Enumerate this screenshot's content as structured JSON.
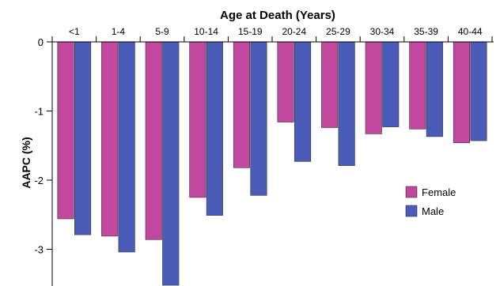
{
  "chart_data": {
    "type": "bar",
    "title": "Age at Death (Years)",
    "xlabel": "",
    "ylabel": "AAPC (%)",
    "categories": [
      "<1",
      "1-4",
      "5-9",
      "10-14",
      "15-19",
      "20-24",
      "25-29",
      "30-34",
      "35-39",
      "40-44"
    ],
    "series": [
      {
        "name": "Female",
        "color": "#c2479f",
        "values": [
          -2.56,
          -2.81,
          -2.86,
          -2.25,
          -1.82,
          -1.16,
          -1.24,
          -1.33,
          -1.26,
          -1.46
        ]
      },
      {
        "name": "Male",
        "color": "#4a5cb8",
        "values": [
          -2.79,
          -3.04,
          -3.52,
          -2.51,
          -2.22,
          -1.73,
          -1.79,
          -1.23,
          -1.37,
          -1.43
        ]
      }
    ],
    "ylim": [
      -3.5,
      0
    ],
    "yticks": [
      0,
      -1,
      -2,
      -3
    ],
    "ytick_labels": [
      "0",
      "-1",
      "-2",
      "-3"
    ],
    "x_axis_position": "top",
    "grid": false,
    "legend": "right"
  }
}
